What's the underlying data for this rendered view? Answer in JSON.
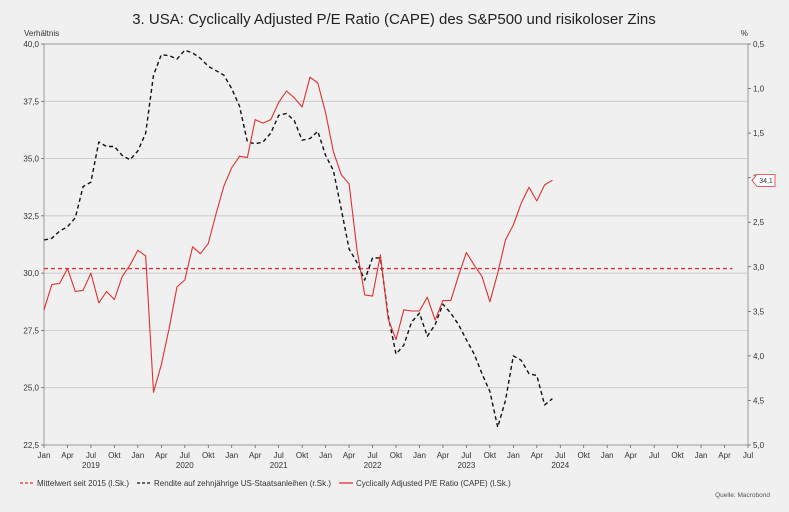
{
  "chart_data": {
    "type": "line",
    "title": "3. USA: Cyclically Adjusted P/E Ratio (CAPE) des S&P500 und risikoloser Zins",
    "ylabel_left": "Verhältnis",
    "ylabel_right": "%",
    "ylim_left": [
      22.5,
      40.0
    ],
    "yticks_left": [
      "40,0",
      "37,5",
      "35,0",
      "32,5",
      "30,0",
      "27,5",
      "25,0",
      "22,5"
    ],
    "ylim_right_inverted": [
      0.5,
      5.0
    ],
    "yticks_right": [
      "0,5",
      "1,0",
      "1,5",
      "2,0",
      "2,5",
      "3,0",
      "3,5",
      "4,0",
      "4,5",
      "5,0"
    ],
    "x_tick_labels": [
      "Jan",
      "Apr",
      "Jul",
      "Okt",
      "Jan",
      "Apr",
      "Jul",
      "Okt",
      "Jan",
      "Apr",
      "Jul",
      "Okt",
      "Jan",
      "Apr",
      "Jul",
      "Okt",
      "Jan",
      "Apr",
      "Jul",
      "Okt",
      "Jan",
      "Apr",
      "Jul",
      "Okt",
      "Jan",
      "Apr",
      "Jul",
      "Okt",
      "Jan",
      "Apr",
      "Jul"
    ],
    "year_labels": [
      "2019",
      "2020",
      "2021",
      "2022",
      "2023",
      "2024"
    ],
    "source": "Quelle: Macrobond",
    "last_value_label": "34,1",
    "series": [
      {
        "name": "Mittelwert seit 2015 (l.Sk.)",
        "axis": "left",
        "color": "#e03030",
        "style": "dashed",
        "start_month": 0,
        "values": [
          30.2,
          30.2
        ]
      },
      {
        "name": "Rendite auf zehnjährige US-Staatsanleihen (r.Sk.)",
        "axis": "right",
        "color": "#111111",
        "style": "dashed",
        "start_month": 0,
        "values": [
          2.7,
          2.68,
          2.6,
          2.55,
          2.45,
          2.1,
          2.05,
          1.6,
          1.65,
          1.65,
          1.75,
          1.8,
          1.7,
          1.5,
          0.85,
          0.62,
          0.63,
          0.67,
          0.57,
          0.6,
          0.66,
          0.75,
          0.8,
          0.85,
          1.0,
          1.2,
          1.6,
          1.62,
          1.6,
          1.5,
          1.3,
          1.28,
          1.36,
          1.58,
          1.56,
          1.48,
          1.75,
          1.92,
          2.35,
          2.8,
          2.95,
          3.15,
          2.9,
          2.9,
          3.55,
          3.98,
          3.88,
          3.62,
          3.52,
          3.78,
          3.65,
          3.42,
          3.52,
          3.65,
          3.82,
          3.98,
          4.2,
          4.4,
          4.8,
          4.5,
          4.0,
          4.05,
          4.2,
          4.22,
          4.55,
          4.48
        ]
      },
      {
        "name": "Cyclically Adjusted P/E Ratio (CAPE) (l.Sk.)",
        "axis": "left",
        "color": "#e03030",
        "style": "solid",
        "start_month": 0,
        "values": [
          28.4,
          29.5,
          29.55,
          30.2,
          29.2,
          29.25,
          30.0,
          28.7,
          29.2,
          28.85,
          29.85,
          30.35,
          31.0,
          30.75,
          24.8,
          26.0,
          27.6,
          29.4,
          29.7,
          31.15,
          30.85,
          31.3,
          32.6,
          33.8,
          34.6,
          35.1,
          35.05,
          36.7,
          36.55,
          36.7,
          37.45,
          37.95,
          37.65,
          37.25,
          38.55,
          38.3,
          37.0,
          35.3,
          34.3,
          33.9,
          31.05,
          29.05,
          29.0,
          30.8,
          28.0,
          27.1,
          28.4,
          28.35,
          28.35,
          28.95,
          27.95,
          28.8,
          28.8,
          29.9,
          30.9,
          30.35,
          29.85,
          28.75,
          30.0,
          31.45,
          32.1,
          33.05,
          33.75,
          33.15,
          33.85,
          34.05
        ]
      }
    ]
  },
  "legend": [
    {
      "label": "Mittelwert seit 2015 (l.Sk.)",
      "color": "#e03030",
      "style": "dashed"
    },
    {
      "label": "Rendite auf zehnjährige US-Staatsanleihen (r.Sk.)",
      "color": "#111111",
      "style": "dashed"
    },
    {
      "label": "Cyclically Adjusted P/E Ratio (CAPE) (l.Sk.)",
      "color": "#e03030",
      "style": "solid"
    }
  ]
}
